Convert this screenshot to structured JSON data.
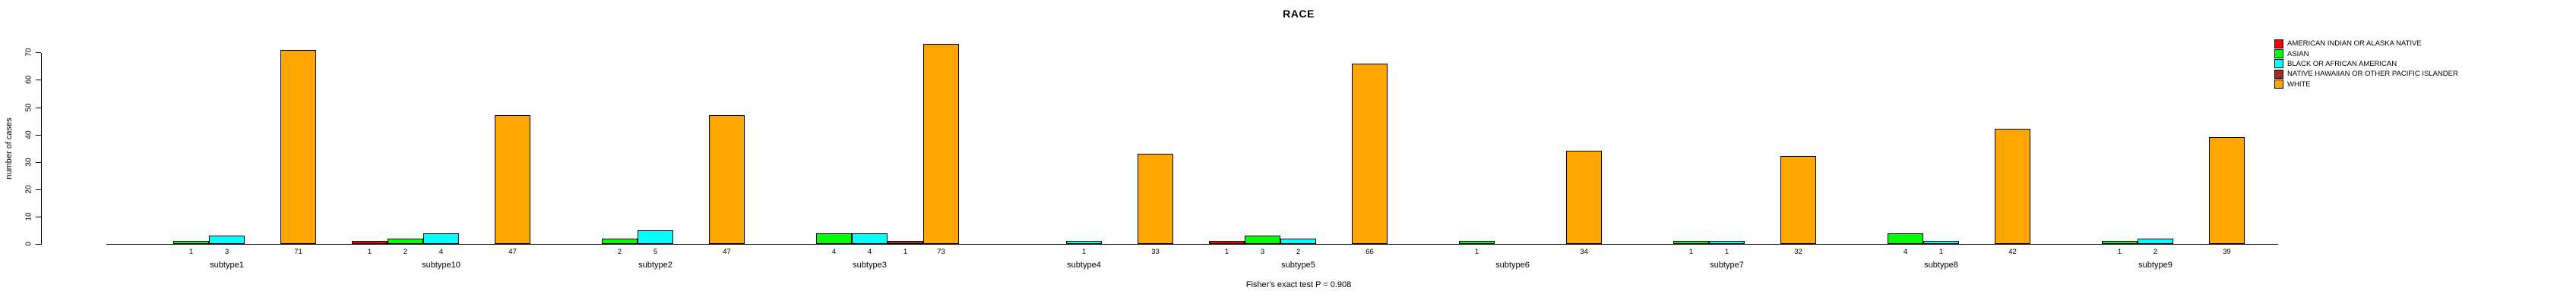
{
  "chart_data": {
    "type": "bar",
    "title": "RACE",
    "xlabel": "",
    "ylabel": "number of cases",
    "ylim": [
      0,
      70
    ],
    "yticks": [
      0,
      10,
      20,
      30,
      40,
      50,
      60,
      70
    ],
    "grid": false,
    "legend_position": "top-right-outside",
    "annotation": "Fisher's exact test P = 0.908",
    "categories": [
      "subtype1",
      "subtype10",
      "subtype2",
      "subtype3",
      "subtype4",
      "subtype5",
      "subtype6",
      "subtype7",
      "subtype8",
      "subtype9"
    ],
    "series": [
      {
        "name": "AMERICAN INDIAN OR ALASKA NATIVE",
        "color": "#FF0000",
        "values": [
          0,
          1,
          0,
          0,
          0,
          1,
          0,
          0,
          0,
          0
        ]
      },
      {
        "name": "ASIAN",
        "color": "#00FF00",
        "values": [
          1,
          2,
          2,
          4,
          0,
          3,
          1,
          1,
          4,
          1
        ]
      },
      {
        "name": "BLACK OR AFRICAN AMERICAN",
        "color": "#00FFFF",
        "values": [
          3,
          4,
          5,
          4,
          1,
          2,
          0,
          1,
          1,
          2
        ]
      },
      {
        "name": "NATIVE HAWAIIAN OR OTHER PACIFIC ISLANDER",
        "color": "#A52A2A",
        "values": [
          0,
          0,
          0,
          1,
          0,
          0,
          0,
          0,
          0,
          0
        ]
      },
      {
        "name": "WHITE",
        "color": "#FFA500",
        "values": [
          71,
          47,
          47,
          73,
          33,
          66,
          34,
          32,
          42,
          39
        ]
      }
    ],
    "value_labels_rule": "nonzero bar counts printed under each bar"
  }
}
